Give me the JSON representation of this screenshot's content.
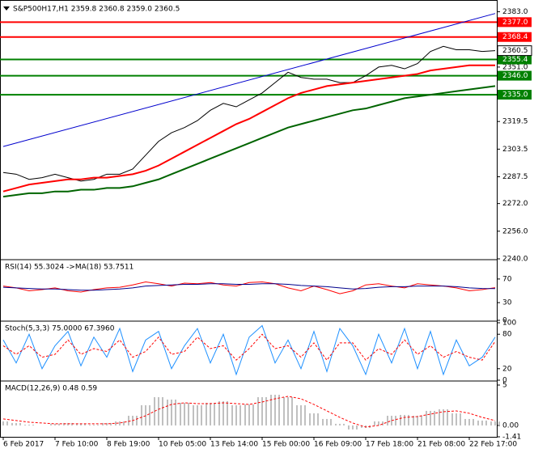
{
  "chart_data": [
    {
      "type": "line",
      "title": "S&P500H17,H1  2359.8 2360.8 2359.0 2360.5",
      "categories": [
        "6 Feb 2017",
        null,
        null,
        null,
        "7 Feb 10:00",
        null,
        null,
        null,
        "8 Feb 19:00",
        null,
        null,
        null,
        "10 Feb 05:00",
        null,
        null,
        null,
        "13 Feb 14:00",
        null,
        null,
        null,
        "15 Feb 00:00",
        null,
        null,
        null,
        "16 Feb 09:00",
        null,
        null,
        null,
        "17 Feb 18:00",
        null,
        null,
        null,
        "21 Feb 08:00",
        null,
        null,
        null,
        "22 Feb 17:00",
        null,
        null
      ],
      "series": [
        {
          "color": "#000000",
          "values": [
            2290,
            2289,
            2286,
            2287,
            2289,
            2287,
            2285,
            2286,
            2289,
            2289,
            2292,
            2300,
            2308,
            2313,
            2316,
            2320,
            2326,
            2330,
            2328,
            2332,
            2336,
            2342,
            2348,
            2345,
            2344,
            2344,
            2342,
            2342,
            2346,
            2351,
            2352,
            2350,
            2353,
            2360,
            2363,
            2361,
            2361,
            2360,
            2360.5
          ]
        },
        {
          "color": "#ff0000",
          "values": [
            2279,
            2281,
            2283,
            2284,
            2285,
            2286,
            2286,
            2287,
            2287,
            2288,
            2289,
            2291,
            2294,
            2298,
            2302,
            2306,
            2310,
            2314,
            2318,
            2321,
            2325,
            2329,
            2333,
            2336,
            2338,
            2340,
            2341,
            2342,
            2343,
            2344,
            2345,
            2346,
            2347,
            2349,
            2350,
            2351,
            2352,
            2352,
            2352
          ]
        },
        {
          "color": "#006400",
          "values": [
            2276,
            2277,
            2278,
            2278,
            2279,
            2279,
            2280,
            2280,
            2281,
            2281,
            2282,
            2284,
            2286,
            2289,
            2292,
            2295,
            2298,
            2301,
            2304,
            2307,
            2310,
            2313,
            2316,
            2318,
            2320,
            2322,
            2324,
            2326,
            2327,
            2329,
            2331,
            2333,
            2334,
            2335,
            2336,
            2337,
            2338,
            2339,
            2340
          ]
        }
      ],
      "trendline": {
        "color": "#0000cd",
        "values": [
          2305,
          2382
        ]
      },
      "levels": [
        {
          "value": 2377,
          "label": "2377.0",
          "color": "#ff0000"
        },
        {
          "value": 2368.4,
          "label": "2368.4",
          "color": "#ff0000"
        },
        {
          "value": 2355.4,
          "label": "2355.4",
          "color": "#008000"
        },
        {
          "value": 2346,
          "label": "2346.0",
          "color": "#008000"
        },
        {
          "value": 2335,
          "label": "2335.0",
          "color": "#008000"
        }
      ],
      "last": {
        "value": 2360.5,
        "label": "2360.5"
      },
      "ylim": [
        2240,
        2387
      ],
      "yticks": [
        {
          "value": 2383,
          "label": "2383.0"
        },
        {
          "value": 2351,
          "label": "2351.0"
        },
        {
          "value": 2319.5,
          "label": "2319.5"
        },
        {
          "value": 2303.5,
          "label": "2303.5"
        },
        {
          "value": 2287.5,
          "label": "2287.5"
        },
        {
          "value": 2272,
          "label": "2272.0"
        },
        {
          "value": 2256,
          "label": "2256.0"
        },
        {
          "value": 2240,
          "label": "2240.0"
        }
      ]
    },
    {
      "type": "line",
      "title": "RSI(14) 55.3024  ->MA(18) 53.7511",
      "series": [
        {
          "color": "#ff0000",
          "values": [
            58,
            55,
            50,
            52,
            55,
            50,
            48,
            52,
            55,
            56,
            60,
            65,
            62,
            58,
            63,
            62,
            64,
            60,
            58,
            64,
            65,
            62,
            55,
            50,
            58,
            52,
            45,
            50,
            60,
            62,
            58,
            55,
            62,
            60,
            58,
            55,
            50,
            52,
            55.3
          ]
        },
        {
          "color": "#00008b",
          "values": [
            56,
            55,
            54,
            53,
            53,
            52,
            51,
            51,
            52,
            53,
            55,
            58,
            59,
            60,
            61,
            61,
            62,
            62,
            61,
            61,
            62,
            62,
            61,
            59,
            58,
            57,
            55,
            53,
            54,
            56,
            57,
            57,
            58,
            58,
            58,
            57,
            55,
            54,
            53.8
          ]
        }
      ],
      "ylim": [
        0,
        100
      ],
      "yticks": [
        70,
        30,
        0
      ]
    },
    {
      "type": "line",
      "title": "Stoch(5,3,3) 75.0000 67.3960",
      "series": [
        {
          "color": "#1e90ff",
          "values": [
            70,
            30,
            80,
            20,
            60,
            85,
            25,
            75,
            40,
            90,
            15,
            70,
            85,
            20,
            60,
            90,
            30,
            80,
            10,
            75,
            95,
            30,
            70,
            20,
            85,
            15,
            90,
            60,
            10,
            80,
            30,
            90,
            20,
            85,
            10,
            70,
            25,
            40,
            75
          ]
        },
        {
          "color": "#ff0000",
          "dash": true,
          "values": [
            60,
            45,
            60,
            40,
            45,
            70,
            45,
            55,
            50,
            70,
            40,
            50,
            75,
            45,
            50,
            75,
            55,
            60,
            35,
            55,
            80,
            55,
            60,
            40,
            65,
            35,
            65,
            65,
            35,
            55,
            45,
            70,
            45,
            60,
            40,
            50,
            40,
            35,
            67.4
          ]
        }
      ],
      "ylim": [
        0,
        100
      ],
      "yticks": [
        100,
        80,
        20,
        0
      ]
    },
    {
      "type": "macd",
      "title": "MACD(12,26,9) 0.48 0.59",
      "histogram": {
        "color": "#c0c0c0",
        "values": [
          0.5,
          0.3,
          0.1,
          0,
          0.2,
          0.3,
          0.2,
          0.1,
          0.3,
          0.5,
          1.2,
          2.5,
          3.5,
          3.2,
          2.8,
          2.5,
          2.8,
          3,
          2.5,
          2.6,
          3.5,
          3.8,
          3.5,
          2.5,
          1.5,
          0.8,
          0.2,
          -0.5,
          -0.3,
          0.5,
          1.2,
          1.3,
          1.2,
          1.8,
          2,
          1.5,
          0.8,
          0.6,
          0.48
        ]
      },
      "series": [
        {
          "color": "#ff0000",
          "dash": true,
          "values": [
            0.8,
            0.6,
            0.4,
            0.3,
            0.2,
            0.2,
            0.2,
            0.2,
            0.2,
            0.3,
            0.6,
            1.2,
            2,
            2.6,
            2.8,
            2.7,
            2.7,
            2.8,
            2.7,
            2.6,
            2.9,
            3.3,
            3.6,
            3.3,
            2.6,
            1.8,
            1,
            0.3,
            -0.2,
            0,
            0.6,
            1,
            1.1,
            1.4,
            1.7,
            1.8,
            1.5,
            1,
            0.59
          ]
        }
      ],
      "ylim": [
        -1.41,
        5.3
      ],
      "yticks": [
        5,
        {
          "value": 0,
          "label": "0.00"
        },
        -1.41
      ]
    }
  ]
}
